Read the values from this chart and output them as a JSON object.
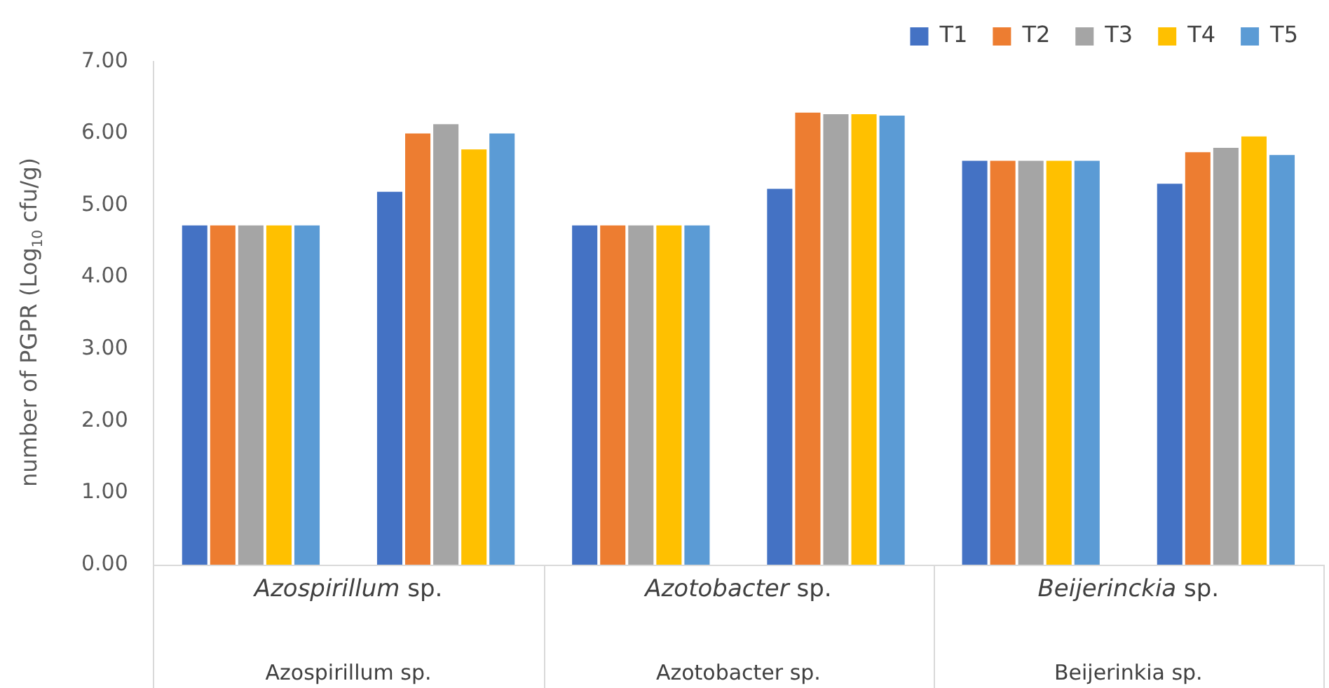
{
  "chart_data": {
    "type": "bar",
    "ylabel": "number of PGPR (Log$_{10}$ cfu/g)",
    "categories": [
      null,
      null,
      null,
      null,
      null,
      null
    ],
    "series": [
      {
        "name": "T1",
        "color": "#4472c4",
        "values": [
          4.72,
          5.19,
          4.72,
          5.23,
          5.62,
          5.3
        ]
      },
      {
        "name": "T2",
        "color": "#ed7d31",
        "values": [
          4.72,
          6.0,
          4.72,
          6.29,
          5.62,
          5.74
        ]
      },
      {
        "name": "T3",
        "color": "#a5a5a5",
        "values": [
          4.72,
          6.13,
          4.72,
          6.27,
          5.62,
          5.8
        ]
      },
      {
        "name": "T4",
        "color": "#ffc000",
        "values": [
          4.72,
          5.78,
          4.72,
          6.27,
          5.62,
          5.96
        ]
      },
      {
        "name": "T5",
        "color": "#5b9bd5",
        "values": [
          4.72,
          6.0,
          4.72,
          6.25,
          5.62,
          5.7
        ]
      }
    ],
    "ylim": [
      0,
      7
    ],
    "yticks": [
      {
        "value": 0,
        "label": "0.00"
      },
      {
        "value": 1,
        "label": "1.00"
      },
      {
        "value": 2,
        "label": "2.00"
      },
      {
        "value": 3,
        "label": "3.00"
      },
      {
        "value": 4,
        "label": "4.00"
      },
      {
        "value": 5,
        "label": "5.00"
      },
      {
        "value": 6,
        "label": "6.00"
      },
      {
        "value": 7,
        "label": "7.00"
      }
    ],
    "annotations": [
      "Azospirillum sp.",
      "Azotobacter sp.",
      "Beijerinckia sp.",
      "Azospirillum sp.",
      "Azotobacter sp.",
      "Beijerinkia sp."
    ],
    "grid": false,
    "legend": "top right"
  }
}
